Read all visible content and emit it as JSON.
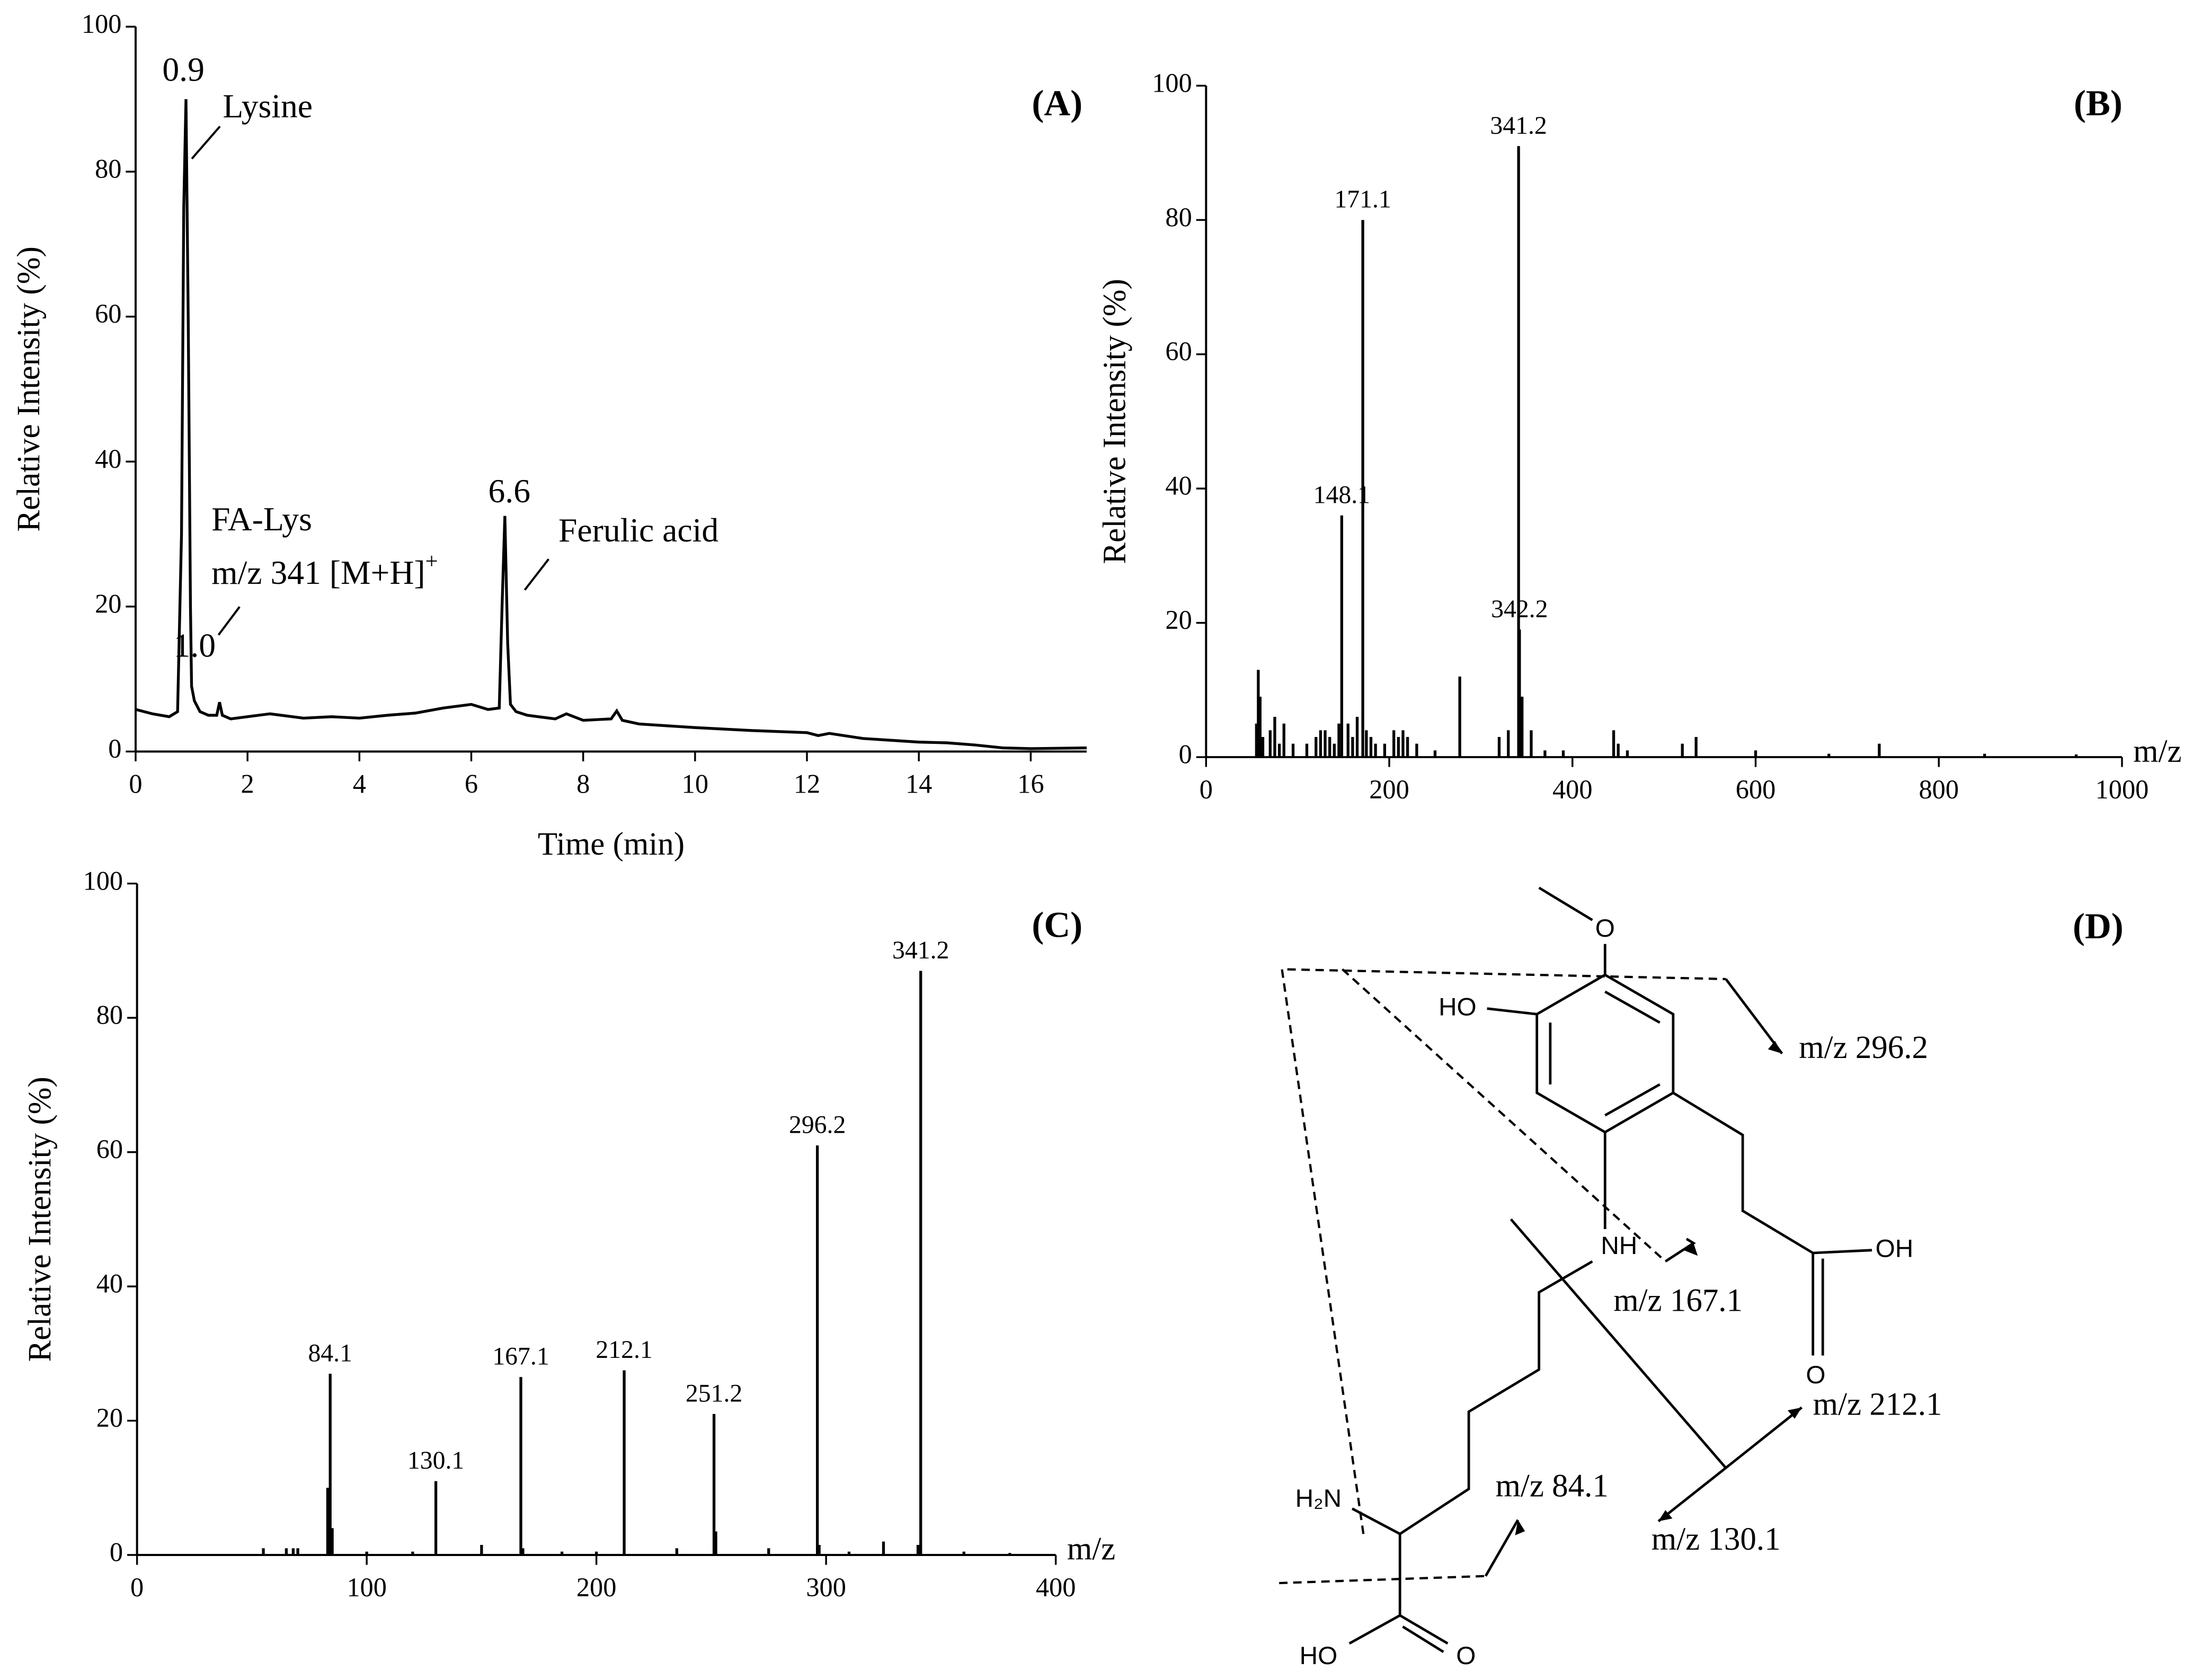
{
  "chart_data": [
    {
      "type": "line",
      "panel_label": "(A)",
      "x_label": "Time (min)",
      "y_label": "Relative Intensity (%)",
      "xlim": [
        0,
        17
      ],
      "ylim": [
        0,
        100
      ],
      "xticks": [
        0,
        2,
        4,
        6,
        8,
        10,
        12,
        14,
        16
      ],
      "yticks": [
        0,
        20,
        40,
        60,
        80,
        100
      ],
      "color": "#000000",
      "x": [
        0,
        0.3,
        0.6,
        0.75,
        0.82,
        0.86,
        0.9,
        0.94,
        0.98,
        1.0,
        1.05,
        1.15,
        1.3,
        1.45,
        1.5,
        1.55,
        1.7,
        2,
        2.4,
        3,
        3.5,
        4,
        4.5,
        5,
        5.5,
        6,
        6.3,
        6.5,
        6.55,
        6.6,
        6.65,
        6.7,
        6.8,
        7,
        7.5,
        7.7,
        8,
        8.5,
        8.6,
        8.7,
        9,
        10,
        11,
        12,
        12.2,
        12.4,
        13,
        14,
        14.5,
        15,
        15.5,
        16,
        17
      ],
      "values": [
        5.8,
        5.2,
        4.8,
        5.5,
        30,
        75,
        90,
        60,
        20,
        9,
        7,
        5.5,
        5,
        5,
        6.8,
        5,
        4.5,
        4.8,
        5.2,
        4.6,
        4.8,
        4.6,
        5,
        5.3,
        6,
        6.5,
        5.8,
        6,
        20,
        32.5,
        15,
        6.5,
        5.5,
        5,
        4.5,
        5.2,
        4.3,
        4.5,
        5.6,
        4.3,
        3.8,
        3.3,
        2.9,
        2.6,
        2.2,
        2.5,
        1.8,
        1.3,
        1.2,
        0.9,
        0.5,
        0.4,
        0.5
      ],
      "annotations": [
        "0.9",
        "Lysine",
        "FA-Lys",
        "m/z 341 [M+H]",
        "+",
        "1.0",
        "6.6",
        "Ferulic acid"
      ]
    },
    {
      "type": "stick",
      "panel_label": "(B)",
      "x_label": "m/z",
      "y_label": "Relative Intensity (%)",
      "xlim": [
        0,
        1000
      ],
      "ylim": [
        0,
        100
      ],
      "xticks": [
        0,
        200,
        400,
        600,
        800,
        1000
      ],
      "yticks": [
        0,
        20,
        40,
        60,
        80,
        100
      ],
      "color": "#000000",
      "x": [
        55,
        57,
        59,
        62,
        70,
        75,
        80,
        85,
        95,
        110,
        120,
        125,
        130,
        135,
        140,
        145,
        155,
        160,
        165,
        175,
        180,
        185,
        195,
        205,
        210,
        215,
        220,
        230,
        250,
        277,
        320,
        330,
        345,
        355,
        370,
        390,
        445,
        450,
        460,
        520,
        535,
        600,
        680,
        735,
        850,
        950
      ],
      "values": [
        5,
        13,
        9,
        3,
        4,
        6,
        2,
        5,
        2,
        2,
        3,
        4,
        4,
        3,
        2,
        5,
        5,
        3,
        6,
        4,
        3,
        2,
        2,
        4,
        3,
        4,
        3,
        2,
        1,
        12,
        3,
        4,
        9,
        4,
        1,
        1,
        4,
        2,
        1,
        2,
        3,
        1,
        0.5,
        2,
        0.5,
        0.4
      ],
      "labeled_peaks": {
        "x": [
          148.1,
          171.1,
          341.2,
          342.2
        ],
        "values": [
          36,
          80,
          91,
          19
        ]
      }
    },
    {
      "type": "stick",
      "panel_label": "(C)",
      "x_label": "m/z",
      "y_label": "Relative Intensity (%)",
      "xlim": [
        0,
        400
      ],
      "ylim": [
        0,
        100
      ],
      "xticks": [
        0,
        100,
        200,
        300,
        400
      ],
      "yticks": [
        0,
        20,
        40,
        60,
        80,
        100
      ],
      "color": "#000000",
      "x": [
        55,
        65,
        68,
        70,
        83,
        85,
        100,
        120,
        150,
        168,
        185,
        200,
        235,
        252,
        275,
        297,
        310,
        325,
        340,
        360,
        380
      ],
      "values": [
        1,
        1,
        1,
        1,
        10,
        4,
        0.5,
        0.5,
        1.5,
        1,
        0.5,
        0.5,
        1,
        3.5,
        1,
        1.5,
        0.5,
        2,
        1.5,
        0.5,
        0.3
      ],
      "labeled_peaks": {
        "x": [
          84.1,
          130.1,
          167.1,
          212.1,
          251.2,
          296.2,
          341.2
        ],
        "values": [
          27,
          11,
          26.5,
          27.5,
          21,
          61,
          87
        ]
      }
    }
  ],
  "diagram": {
    "panel_label": "(D)",
    "fragments": [
      "m/z 296.2",
      "m/z 167.1",
      "m/z 212.1",
      "m/z 130.1",
      "m/z 84.1"
    ],
    "atoms": [
      "HO",
      "O",
      "NH",
      "OH",
      "O",
      "H₂N",
      "HO",
      "O"
    ]
  }
}
